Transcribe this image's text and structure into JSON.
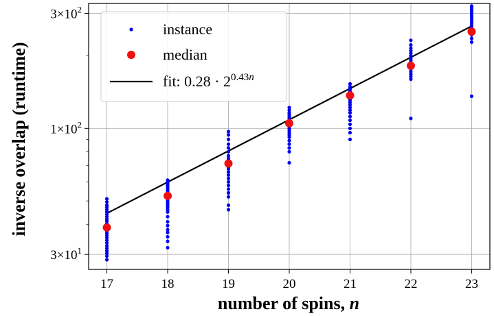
{
  "chart_data": {
    "type": "scatter",
    "xlabel": "number of spins, ",
    "xlabel_var": "n",
    "ylabel": "inverse overlap (runtime)",
    "xlim": [
      16.7,
      23.3
    ],
    "ylim": [
      26,
      330
    ],
    "yscale": "log",
    "grid": true,
    "legend_position": "top-left",
    "x_ticks": [
      17,
      18,
      19,
      20,
      21,
      22,
      23
    ],
    "y_ticks": [
      {
        "value": 30,
        "mantissa": "3",
        "times": "×",
        "base": "10",
        "exp": "1"
      },
      {
        "value": 100,
        "mantissa": "1",
        "times": "×",
        "base": "10",
        "exp": "2"
      },
      {
        "value": 300,
        "mantissa": "3",
        "times": "×",
        "base": "10",
        "exp": "2"
      }
    ],
    "legend": [
      {
        "label": "instance"
      },
      {
        "label": "median"
      },
      {
        "label": "fit: 0.28 · 2",
        "superscript": "0.43",
        "superscript_var": "n"
      }
    ],
    "series": [
      {
        "name": "instance",
        "color": "#0000ee",
        "points": {
          "17": [
            28.5,
            29.5,
            30.3,
            31,
            31.8,
            32.6,
            33.5,
            34.3,
            35.2,
            36,
            36.8,
            37.6,
            38.5,
            39.4,
            40.3,
            41.2,
            42,
            43,
            44,
            45,
            46,
            47,
            48,
            49.5,
            51
          ],
          "18": [
            32,
            34,
            35.5,
            37,
            38,
            39.5,
            41,
            43,
            45,
            46,
            47,
            48,
            49,
            50,
            51,
            52,
            53,
            54,
            55,
            56,
            57,
            58,
            59,
            60,
            61
          ],
          "19": [
            46,
            48,
            52,
            54,
            56,
            58,
            60,
            62,
            64,
            66,
            68,
            69,
            70,
            71,
            72,
            73,
            74,
            75,
            77,
            80,
            83,
            86,
            90,
            94,
            97
          ],
          "20": [
            72,
            80,
            83,
            86,
            89,
            92,
            94,
            96,
            98,
            100,
            102,
            104,
            106,
            108,
            110,
            112,
            114,
            116,
            119,
            122
          ],
          "21": [
            90,
            96,
            100,
            104,
            108,
            112,
            116,
            119,
            122,
            125,
            128,
            131,
            134,
            137,
            140,
            143,
            146,
            149,
            153
          ],
          "22": [
            110,
            160,
            164,
            168,
            172,
            176,
            180,
            184,
            188,
            192,
            196,
            200,
            205,
            210,
            215,
            222,
            232
          ],
          "23": [
            136,
            228,
            236,
            244,
            250,
            256,
            262,
            268,
            274,
            280,
            286,
            292,
            298,
            304,
            310,
            316,
            322
          ]
        }
      },
      {
        "name": "median",
        "color": "#ee1111",
        "x": [
          17,
          18,
          19,
          20,
          21,
          22,
          23
        ],
        "y": [
          38.8,
          52.5,
          71.5,
          105,
          137,
          182,
          252
        ]
      },
      {
        "name": "fit",
        "color": "#000000",
        "coef": 0.28,
        "base": 2,
        "rate": 0.43
      }
    ]
  }
}
